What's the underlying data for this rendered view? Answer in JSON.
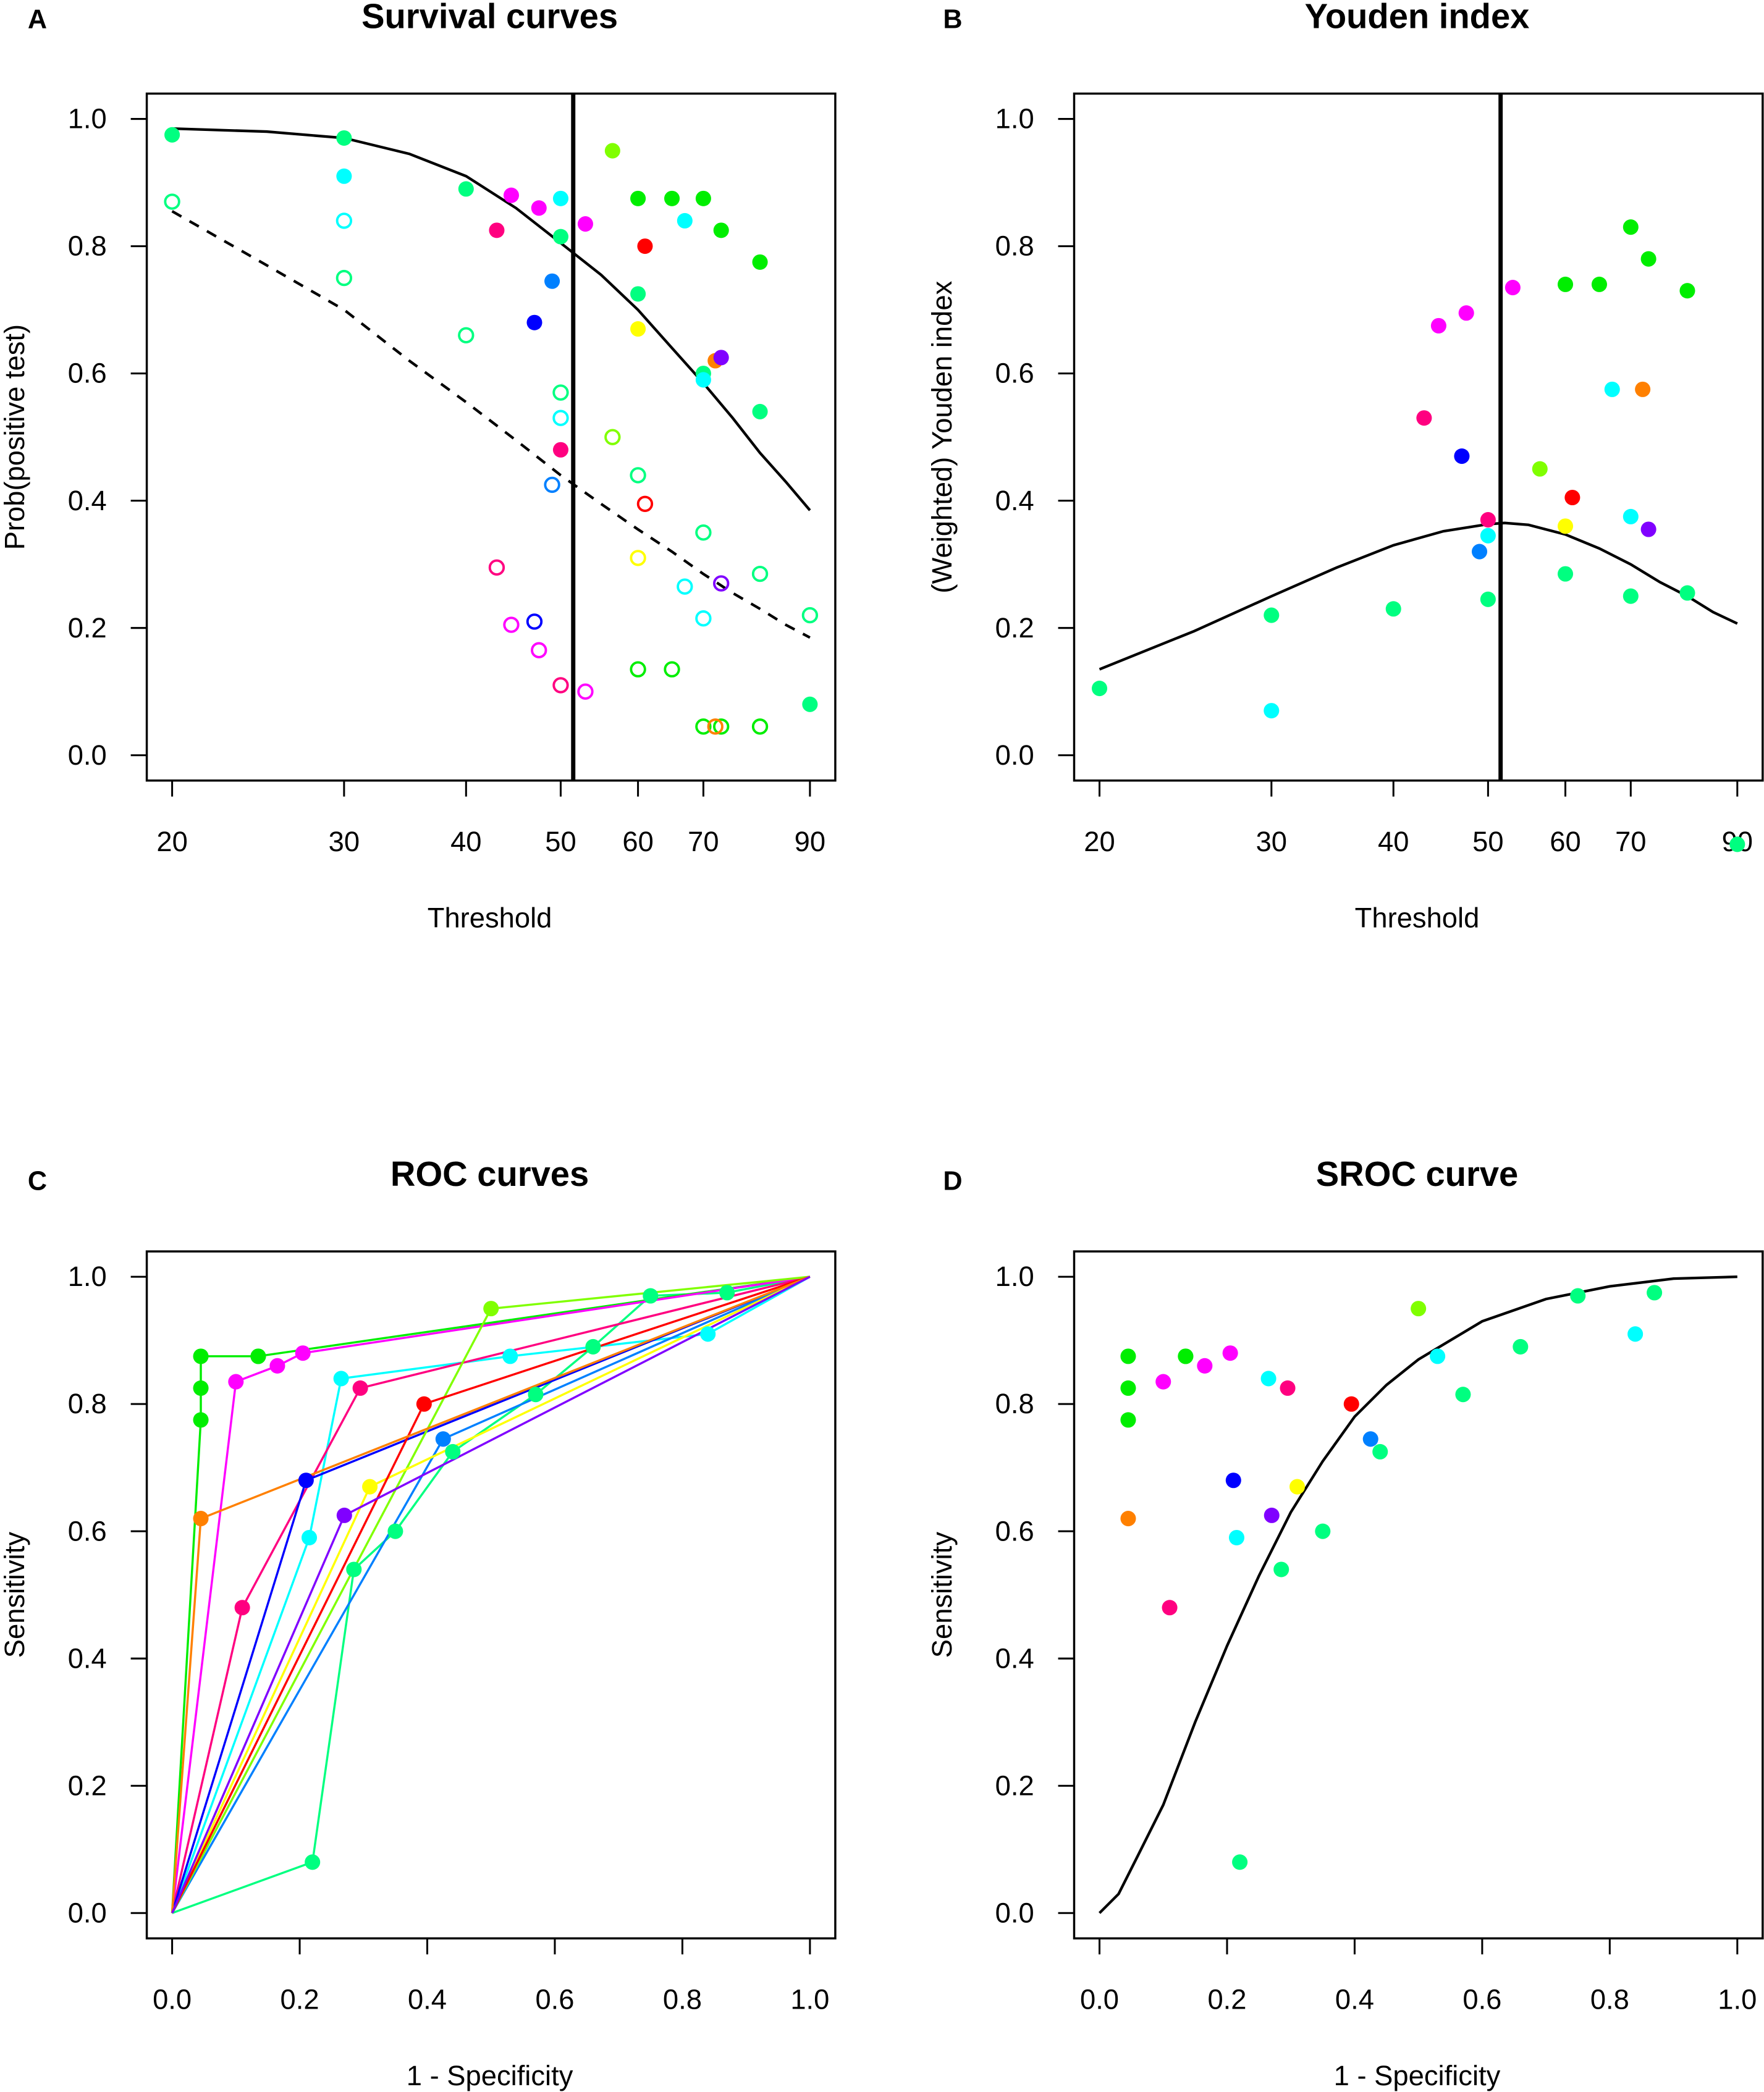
{
  "studies": [
    {
      "color": "#00FF80",
      "points": [
        [
          20,
          0.975,
          0.87
        ],
        [
          30,
          0.97,
          0.75
        ],
        [
          40,
          0.89,
          0.66
        ],
        [
          50,
          0.815,
          0.57
        ],
        [
          60,
          0.725,
          0.44
        ],
        [
          70,
          0.6,
          0.35
        ],
        [
          80,
          0.54,
          0.285
        ],
        [
          90,
          0.08,
          0.22
        ]
      ]
    },
    {
      "color": "#00FFFF",
      "points": [
        [
          30,
          0.91,
          0.84
        ],
        [
          50,
          0.875,
          0.53
        ],
        [
          67,
          0.84,
          0.265
        ],
        [
          70,
          0.59,
          0.215
        ]
      ]
    },
    {
      "color": "#00EE00",
      "points": [
        [
          60,
          0.875,
          0.135
        ],
        [
          65,
          0.875,
          0.135
        ],
        [
          70,
          0.875,
          0.045
        ],
        [
          73,
          0.825,
          0.045
        ],
        [
          80,
          0.775,
          0.045
        ]
      ]
    },
    {
      "color": "#FF00FF",
      "points": [
        [
          44.5,
          0.88,
          0.205
        ],
        [
          47.5,
          0.86,
          0.165
        ],
        [
          53,
          0.835,
          0.1
        ]
      ]
    },
    {
      "color": "#FF0080",
      "points": [
        [
          43,
          0.825,
          0.295
        ],
        [
          50,
          0.48,
          0.11
        ]
      ]
    },
    {
      "color": "#0000FF",
      "points": [
        [
          47,
          0.68,
          0.21
        ]
      ]
    },
    {
      "color": "#0080FF",
      "points": [
        [
          49,
          0.745,
          0.425
        ]
      ]
    },
    {
      "color": "#80FF00",
      "points": [
        [
          56.5,
          0.95,
          0.5
        ]
      ]
    },
    {
      "color": "#FFFF00",
      "points": [
        [
          60,
          0.67,
          0.31
        ]
      ]
    },
    {
      "color": "#FF0000",
      "points": [
        [
          61,
          0.8,
          0.395
        ]
      ]
    },
    {
      "color": "#FF8000",
      "points": [
        [
          72,
          0.62,
          0.045
        ]
      ]
    },
    {
      "color": "#8000FF",
      "points": [
        [
          73,
          0.625,
          0.27
        ]
      ]
    }
  ],
  "chart_data": [
    {
      "panel": "A",
      "type": "scatter",
      "title": "Survival curves",
      "xlabel": "Threshold",
      "ylabel": "Prob(positive test)",
      "xscale": "log",
      "xlim": [
        20,
        90
      ],
      "ylim": [
        0,
        1
      ],
      "xticks": [
        "20",
        "30",
        "40",
        "50",
        "60",
        "70",
        "90"
      ],
      "yticks": [
        "0.0",
        "0.2",
        "0.4",
        "0.6",
        "0.8",
        "1.0"
      ],
      "point_fields": [
        "threshold",
        "sensitivity (filled)",
        "1-specificity (open)"
      ],
      "optimal_threshold": 51.5,
      "sens_curve": [
        [
          20,
          0.985
        ],
        [
          25,
          0.98
        ],
        [
          30,
          0.97
        ],
        [
          35,
          0.945
        ],
        [
          40,
          0.91
        ],
        [
          45,
          0.86
        ],
        [
          50,
          0.805
        ],
        [
          55,
          0.755
        ],
        [
          60,
          0.7
        ],
        [
          65,
          0.64
        ],
        [
          70,
          0.585
        ],
        [
          75,
          0.53
        ],
        [
          80,
          0.475
        ],
        [
          85,
          0.43
        ],
        [
          90,
          0.385
        ]
      ],
      "fpr_curve": [
        [
          20,
          0.855
        ],
        [
          25,
          0.77
        ],
        [
          30,
          0.7
        ],
        [
          35,
          0.62
        ],
        [
          40,
          0.555
        ],
        [
          45,
          0.495
        ],
        [
          50,
          0.44
        ],
        [
          55,
          0.395
        ],
        [
          60,
          0.355
        ],
        [
          65,
          0.32
        ],
        [
          70,
          0.285
        ],
        [
          75,
          0.255
        ],
        [
          80,
          0.23
        ],
        [
          85,
          0.205
        ],
        [
          90,
          0.185
        ]
      ]
    },
    {
      "panel": "B",
      "type": "scatter",
      "title": "Youden index",
      "xlabel": "Threshold",
      "ylabel": "(Weighted) Youden index",
      "xscale": "log",
      "xlim": [
        20,
        90
      ],
      "ylim": [
        0,
        1
      ],
      "xticks": [
        "20",
        "30",
        "40",
        "50",
        "60",
        "70",
        "90"
      ],
      "yticks": [
        "0.0",
        "0.2",
        "0.4",
        "0.6",
        "0.8",
        "1.0"
      ],
      "optimal_threshold": 51.5,
      "curve": [
        [
          20,
          0.135
        ],
        [
          25,
          0.195
        ],
        [
          30,
          0.25
        ],
        [
          35,
          0.295
        ],
        [
          40,
          0.33
        ],
        [
          45,
          0.352
        ],
        [
          50,
          0.363
        ],
        [
          52,
          0.365
        ],
        [
          55,
          0.362
        ],
        [
          60,
          0.347
        ],
        [
          65,
          0.325
        ],
        [
          70,
          0.3
        ],
        [
          75,
          0.272
        ],
        [
          80,
          0.25
        ],
        [
          85,
          0.225
        ],
        [
          90,
          0.207
        ]
      ]
    },
    {
      "panel": "C",
      "type": "line",
      "title": "ROC curves",
      "xlabel": "1 - Specificity",
      "ylabel": "Sensitivity",
      "xlim": [
        0,
        1
      ],
      "ylim": [
        0,
        1
      ],
      "xticks": [
        "0.0",
        "0.2",
        "0.4",
        "0.6",
        "0.8",
        "1.0"
      ],
      "yticks": [
        "0.0",
        "0.2",
        "0.4",
        "0.6",
        "0.8",
        "1.0"
      ]
    },
    {
      "panel": "D",
      "type": "scatter",
      "title": "SROC curve",
      "xlabel": "1 - Specificity",
      "ylabel": "Sensitivity",
      "xlim": [
        0,
        1
      ],
      "ylim": [
        0,
        1
      ],
      "xticks": [
        "0.0",
        "0.2",
        "0.4",
        "0.6",
        "0.8",
        "1.0"
      ],
      "yticks": [
        "0.0",
        "0.2",
        "0.4",
        "0.6",
        "0.8",
        "1.0"
      ],
      "curve": [
        [
          0,
          0
        ],
        [
          0.03,
          0.03
        ],
        [
          0.06,
          0.09
        ],
        [
          0.1,
          0.17
        ],
        [
          0.15,
          0.3
        ],
        [
          0.2,
          0.42
        ],
        [
          0.25,
          0.53
        ],
        [
          0.3,
          0.63
        ],
        [
          0.35,
          0.71
        ],
        [
          0.4,
          0.78
        ],
        [
          0.45,
          0.83
        ],
        [
          0.5,
          0.87
        ],
        [
          0.6,
          0.93
        ],
        [
          0.7,
          0.965
        ],
        [
          0.8,
          0.985
        ],
        [
          0.9,
          0.997
        ],
        [
          1,
          1
        ]
      ]
    }
  ]
}
